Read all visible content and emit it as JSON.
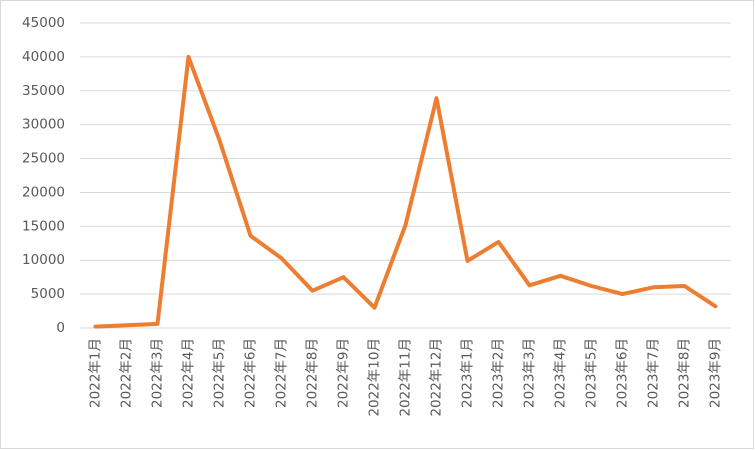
{
  "chart_data": {
    "type": "line",
    "categories": [
      "2022年1月",
      "2022年2月",
      "2022年3月",
      "2022年4月",
      "2022年5月",
      "2022年6月",
      "2022年7月",
      "2022年8月",
      "2022年9月",
      "2022年10月",
      "2022年11月",
      "2022年12月",
      "2023年1月",
      "2023年2月",
      "2023年3月",
      "2023年4月",
      "2023年5月",
      "2023年6月",
      "2023年7月",
      "2023年8月",
      "2023年9月"
    ],
    "values": [
      200,
      400,
      600,
      40000,
      27700,
      13600,
      10300,
      5500,
      7500,
      3000,
      15200,
      33900,
      9900,
      12700,
      6300,
      7700,
      6200,
      5000,
      6000,
      6200,
      3200
    ],
    "color": "#ed7d31",
    "ylim": [
      0,
      45000
    ],
    "yticks": [
      0,
      5000,
      10000,
      15000,
      20000,
      25000,
      30000,
      35000,
      40000,
      45000
    ],
    "grid": true
  }
}
